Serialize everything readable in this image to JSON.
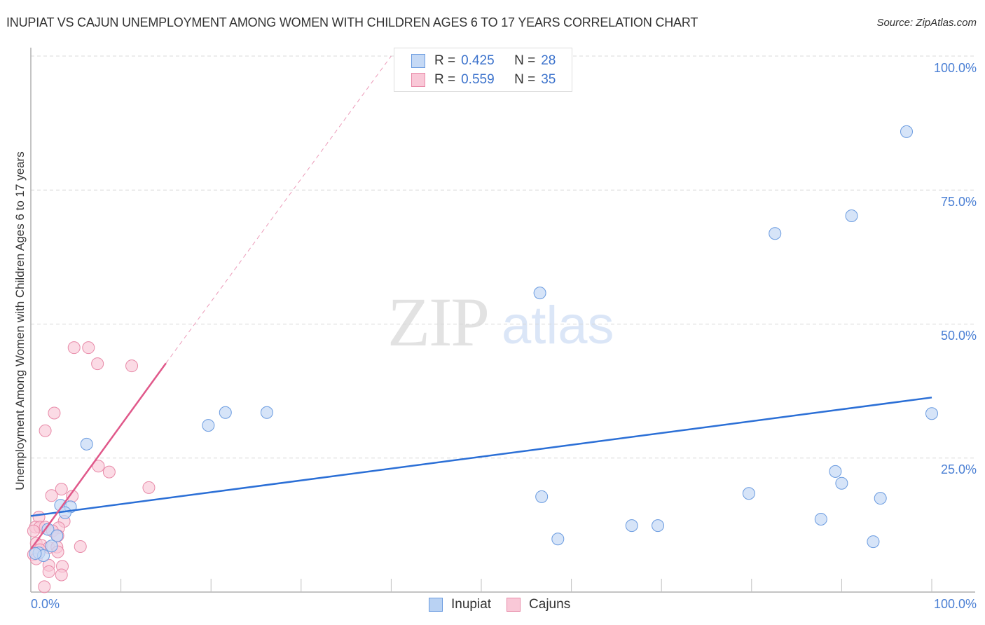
{
  "header": {
    "title": "INUPIAT VS CAJUN UNEMPLOYMENT AMONG WOMEN WITH CHILDREN AGES 6 TO 17 YEARS CORRELATION CHART",
    "source": "Source: ZipAtlas.com"
  },
  "watermark": {
    "zip": "ZIP",
    "atlas": "atlas"
  },
  "legend": {
    "rows": [
      {
        "series": "Inupiat",
        "r_label": "R =",
        "r_value": "0.425",
        "n_label": "N =",
        "n_value": "28"
      },
      {
        "series": "Cajuns",
        "r_label": "R =",
        "r_value": "0.559",
        "n_label": "N =",
        "n_value": "35"
      }
    ],
    "bottom": [
      {
        "label": "Inupiat"
      },
      {
        "label": "Cajuns"
      }
    ]
  },
  "axes": {
    "ylabel": "Unemployment Among Women with Children Ages 6 to 17 years",
    "yticks": [
      "100.0%",
      "75.0%",
      "50.0%",
      "25.0%"
    ],
    "xtick_left": "0.0%",
    "xtick_right": "100.0%"
  },
  "colors": {
    "inupiat_fill": "#c5d9f5",
    "inupiat_stroke": "#6a9be0",
    "inupiat_line": "#2b6fd6",
    "cajun_fill": "#f9c8d7",
    "cajun_stroke": "#e88aa8",
    "cajun_line": "#e0588a",
    "tick_label": "#4a7fd4"
  },
  "chart_data": {
    "type": "scatter",
    "title": "INUPIAT VS CAJUN UNEMPLOYMENT AMONG WOMEN WITH CHILDREN AGES 6 TO 17 YEARS CORRELATION CHART",
    "xlabel": "",
    "ylabel": "Unemployment Among Women with Children Ages 6 to 17 years",
    "xlim": [
      0,
      100
    ],
    "ylim": [
      0,
      100
    ],
    "x_ticks": [
      "0.0%",
      "100.0%"
    ],
    "y_ticks": [
      "25.0%",
      "50.0%",
      "75.0%",
      "100.0%"
    ],
    "grid": "horizontal dashed",
    "legend_position": "top-center and bottom-center",
    "series": [
      {
        "name": "Inupiat",
        "R": 0.425,
        "N": 28,
        "trendline": {
          "x": [
            0,
            100
          ],
          "y": [
            14.2,
            36.3
          ]
        },
        "points": [
          [
            97.2,
            85.9
          ],
          [
            91.1,
            70.2
          ],
          [
            82.6,
            66.9
          ],
          [
            56.5,
            55.8
          ],
          [
            100.0,
            33.3
          ],
          [
            21.6,
            33.5
          ],
          [
            26.2,
            33.5
          ],
          [
            19.7,
            31.1
          ],
          [
            6.2,
            27.6
          ],
          [
            89.3,
            22.5
          ],
          [
            90.0,
            20.3
          ],
          [
            79.7,
            18.4
          ],
          [
            94.3,
            17.5
          ],
          [
            56.7,
            17.8
          ],
          [
            3.3,
            16.2
          ],
          [
            4.4,
            15.9
          ],
          [
            3.8,
            14.8
          ],
          [
            87.7,
            13.6
          ],
          [
            66.7,
            12.4
          ],
          [
            69.6,
            12.4
          ],
          [
            1.9,
            11.7
          ],
          [
            2.9,
            10.5
          ],
          [
            58.5,
            9.9
          ],
          [
            93.5,
            9.4
          ],
          [
            2.3,
            8.6
          ],
          [
            0.9,
            7.3
          ],
          [
            1.4,
            6.8
          ],
          [
            0.5,
            7.2
          ]
        ]
      },
      {
        "name": "Cajuns",
        "R": 0.559,
        "N": 35,
        "trendline": {
          "x": [
            0,
            15
          ],
          "y": [
            8.0,
            42.7
          ],
          "dashed_extension_to": [
            40,
            100
          ]
        },
        "points": [
          [
            4.8,
            45.6
          ],
          [
            6.4,
            45.6
          ],
          [
            7.4,
            42.6
          ],
          [
            11.2,
            42.2
          ],
          [
            2.6,
            33.4
          ],
          [
            1.6,
            30.1
          ],
          [
            7.5,
            23.5
          ],
          [
            8.7,
            22.4
          ],
          [
            13.1,
            19.5
          ],
          [
            3.4,
            19.2
          ],
          [
            2.3,
            18.0
          ],
          [
            4.6,
            17.9
          ],
          [
            0.9,
            14.0
          ],
          [
            3.7,
            13.2
          ],
          [
            0.5,
            12.1
          ],
          [
            1.0,
            12.1
          ],
          [
            1.6,
            12.1
          ],
          [
            3.1,
            12.0
          ],
          [
            0.3,
            11.4
          ],
          [
            2.4,
            11.4
          ],
          [
            3.0,
            10.5
          ],
          [
            0.6,
            9.1
          ],
          [
            1.2,
            8.7
          ],
          [
            2.0,
            8.3
          ],
          [
            2.9,
            8.4
          ],
          [
            5.5,
            8.5
          ],
          [
            1.0,
            7.9
          ],
          [
            0.3,
            7.0
          ],
          [
            3.0,
            7.5
          ],
          [
            2.0,
            5.0
          ],
          [
            3.5,
            4.8
          ],
          [
            2.0,
            3.8
          ],
          [
            3.4,
            3.2
          ],
          [
            1.5,
            1.0
          ],
          [
            0.6,
            6.2
          ]
        ]
      }
    ]
  }
}
